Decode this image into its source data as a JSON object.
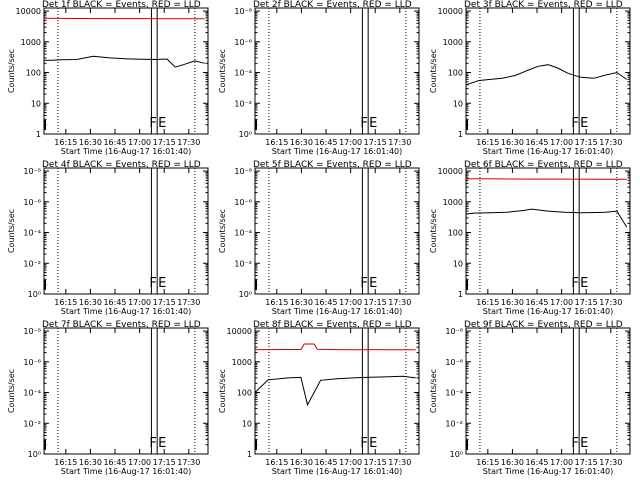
{
  "chart_data": [
    {
      "type": "line",
      "title": "Det 1f BLACK = Events, RED = LLD",
      "ylabel": "Counts/sec",
      "xlabel": "Start Time (16-Aug-17 16:01:40)",
      "x_ticks": [
        "16:15",
        "16:30",
        "16:45",
        "17:00",
        "17:15",
        "17:30"
      ],
      "y_ticks": [
        "1",
        "10",
        "100",
        "1000",
        "10000"
      ],
      "ylim_log10": [
        0,
        4.1
      ],
      "xlim_min": [
        0,
        100
      ],
      "markers": [
        "F",
        "E"
      ],
      "series": [
        {
          "name": "Events",
          "color": "#000000",
          "t": [
            0,
            5,
            10,
            20,
            25,
            30,
            40,
            50,
            60,
            68,
            75,
            80,
            85,
            92,
            98
          ],
          "v": [
            250,
            250,
            260,
            265,
            300,
            340,
            300,
            280,
            270,
            265,
            275,
            150,
            180,
            240,
            200
          ]
        },
        {
          "name": "LLD",
          "color": "#d00000",
          "t": [
            0,
            20,
            40,
            60,
            80,
            98
          ],
          "v": [
            5800,
            5750,
            5700,
            5680,
            5650,
            5600
          ]
        }
      ]
    },
    {
      "type": "line",
      "title": "Det 2f BLACK = Events, RED = LLD",
      "ylabel": "Counts/sec",
      "xlabel": "Start Time (16-Aug-17 16:01:40)",
      "x_ticks": [
        "16:15",
        "16:30",
        "16:45",
        "17:00",
        "17:15",
        "17:30"
      ],
      "y_ticks": [
        "10⁰",
        "10⁻²",
        "10⁻⁴",
        "10⁻⁶",
        "10⁻⁸"
      ],
      "ylim_log10": [
        0,
        4.1
      ],
      "xlim_min": [
        0,
        100
      ],
      "markers": [
        "F",
        "E"
      ],
      "series": []
    },
    {
      "type": "line",
      "title": "Det 3f BLACK = Events, RED = LLD",
      "ylabel": "Counts/sec",
      "xlabel": "Start Time (16-Aug-17 16:01:40)",
      "x_ticks": [
        "16:15",
        "16:30",
        "16:45",
        "17:00",
        "17:15",
        "17:30"
      ],
      "y_ticks": [
        "1",
        "10",
        "100",
        "1000",
        "10000"
      ],
      "ylim_log10": [
        0,
        4.1
      ],
      "xlim_min": [
        0,
        100
      ],
      "markers": [
        "F",
        "E"
      ],
      "series": [
        {
          "name": "Events",
          "color": "#000000",
          "t": [
            0,
            8,
            15,
            22,
            30,
            38,
            44,
            50,
            56,
            62,
            70,
            78,
            84,
            92,
            98
          ],
          "v": [
            40,
            55,
            60,
            65,
            80,
            120,
            160,
            180,
            140,
            95,
            70,
            65,
            80,
            100,
            60
          ]
        }
      ]
    },
    {
      "type": "line",
      "title": "Det 4f BLACK = Events, RED = LLD",
      "ylabel": "Counts/sec",
      "xlabel": "Start Time (16-Aug-17 16:01:40)",
      "x_ticks": [
        "16:15",
        "16:30",
        "16:45",
        "17:00",
        "17:15",
        "17:30"
      ],
      "y_ticks": [
        "10⁰",
        "10⁻²",
        "10⁻⁴",
        "10⁻⁶",
        "10⁻⁸"
      ],
      "ylim_log10": [
        0,
        4.1
      ],
      "xlim_min": [
        0,
        100
      ],
      "markers": [
        "F",
        "E"
      ],
      "series": []
    },
    {
      "type": "line",
      "title": "Det 5f BLACK = Events, RED = LLD",
      "ylabel": "Counts/sec",
      "xlabel": "Start Time (16-Aug-17 16:01:40)",
      "x_ticks": [
        "16:15",
        "16:30",
        "16:45",
        "17:00",
        "17:15",
        "17:30"
      ],
      "y_ticks": [
        "10⁰",
        "10⁻²",
        "10⁻⁴",
        "10⁻⁶",
        "10⁻⁸"
      ],
      "ylim_log10": [
        0,
        4.1
      ],
      "xlim_min": [
        0,
        100
      ],
      "markers": [
        "F",
        "E"
      ],
      "series": []
    },
    {
      "type": "line",
      "title": "Det 6f BLACK = Events, RED = LLD",
      "ylabel": "Counts/sec",
      "xlabel": "Start Time (16-Aug-17 16:01:40)",
      "x_ticks": [
        "16:15",
        "16:30",
        "16:45",
        "17:00",
        "17:15",
        "17:30"
      ],
      "y_ticks": [
        "1",
        "10",
        "100",
        "1000",
        "10000"
      ],
      "ylim_log10": [
        0,
        4.1
      ],
      "xlim_min": [
        0,
        100
      ],
      "markers": [
        "F",
        "E"
      ],
      "series": [
        {
          "name": "Events",
          "color": "#000000",
          "t": [
            0,
            5,
            15,
            25,
            35,
            40,
            50,
            60,
            70,
            80,
            85,
            92,
            98
          ],
          "v": [
            400,
            430,
            440,
            460,
            520,
            580,
            500,
            460,
            440,
            450,
            460,
            500,
            150
          ]
        },
        {
          "name": "LLD",
          "color": "#d00000",
          "t": [
            0,
            20,
            40,
            60,
            80,
            98
          ],
          "v": [
            5600,
            5550,
            5500,
            5480,
            5450,
            5400
          ]
        }
      ]
    },
    {
      "type": "line",
      "title": "Det 7f BLACK = Events, RED = LLD",
      "ylabel": "Counts/sec",
      "xlabel": "Start Time (16-Aug-17 16:01:40)",
      "x_ticks": [
        "16:15",
        "16:30",
        "16:45",
        "17:00",
        "17:15",
        "17:30"
      ],
      "y_ticks": [
        "10⁰",
        "10⁻²",
        "10⁻⁴",
        "10⁻⁶",
        "10⁻⁸"
      ],
      "ylim_log10": [
        0,
        4.1
      ],
      "xlim_min": [
        0,
        100
      ],
      "markers": [
        "F",
        "E"
      ],
      "series": []
    },
    {
      "type": "line",
      "title": "Det 8f BLACK = Events, RED = LLD",
      "ylabel": "Counts/sec",
      "xlabel": "Start Time (16-Aug-17 16:01:40)",
      "x_ticks": [
        "16:15",
        "16:30",
        "16:45",
        "17:00",
        "17:15",
        "17:30"
      ],
      "y_ticks": [
        "1",
        "10",
        "100",
        "1000",
        "10000"
      ],
      "ylim_log10": [
        0,
        4.1
      ],
      "xlim_min": [
        0,
        100
      ],
      "markers": [
        "F",
        "E"
      ],
      "series": [
        {
          "name": "Events",
          "color": "#000000",
          "t": [
            0,
            8,
            15,
            20,
            28,
            32,
            40,
            50,
            60,
            68,
            76,
            84,
            90,
            98
          ],
          "v": [
            100,
            260,
            280,
            300,
            310,
            40,
            250,
            280,
            300,
            310,
            320,
            330,
            340,
            300
          ]
        },
        {
          "name": "LLD",
          "color": "#d00000",
          "t": [
            0,
            10,
            20,
            28,
            30,
            36,
            38,
            50,
            60,
            70,
            80,
            90,
            98
          ],
          "v": [
            2500,
            2500,
            2520,
            2520,
            3800,
            3800,
            2550,
            2500,
            2480,
            2500,
            2480,
            2470,
            2450
          ]
        }
      ]
    },
    {
      "type": "line",
      "title": "Det 9f BLACK = Events, RED = LLD",
      "ylabel": "Counts/sec",
      "xlabel": "Start Time (16-Aug-17 16:01:40)",
      "x_ticks": [
        "16:15",
        "16:30",
        "16:45",
        "17:00",
        "17:15",
        "17:30"
      ],
      "y_ticks": [
        "10⁰",
        "10⁻²",
        "10⁻⁴",
        "10⁻⁶",
        "10⁻⁸"
      ],
      "ylim_log10": [
        0,
        4.1
      ],
      "xlim_min": [
        0,
        100
      ],
      "markers": [
        "F",
        "E"
      ],
      "series": []
    }
  ]
}
